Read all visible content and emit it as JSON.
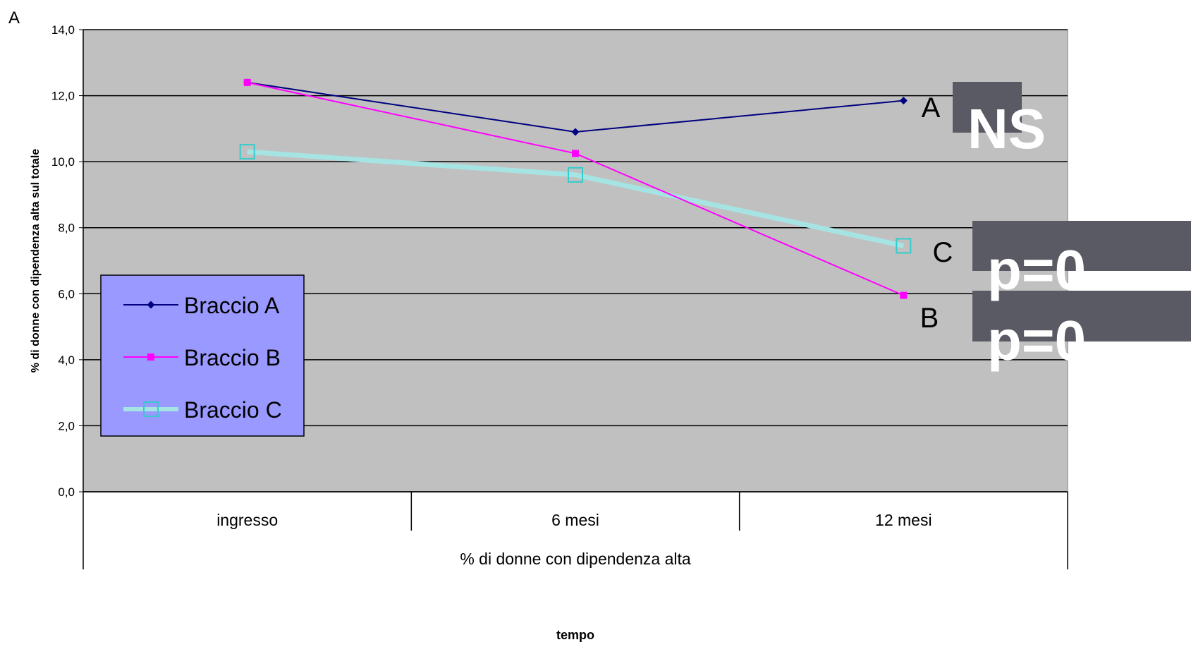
{
  "panel_label": "A",
  "chart_data": {
    "type": "line",
    "categories": [
      "ingresso",
      "6 mesi",
      "12 mesi"
    ],
    "xlabel": "%  di donne con dipendenza alta",
    "xlabel_secondary": "tempo",
    "ylabel": "% di donne con dipendenza alta sul totale",
    "ylim": [
      0,
      14
    ],
    "yticks": [
      "0,0",
      "2,0",
      "4,0",
      "6,0",
      "8,0",
      "10,0",
      "12,0",
      "14,0"
    ],
    "grid": true,
    "legend_placement": "lower-left",
    "series": [
      {
        "name": "Braccio A",
        "values": [
          12.4,
          10.9,
          11.85
        ],
        "color": "#000080",
        "marker": "diamond",
        "end_label": "A"
      },
      {
        "name": "Braccio B",
        "values": [
          12.4,
          10.25,
          5.95
        ],
        "color": "#ff00ff",
        "marker": "square",
        "end_label": "B"
      },
      {
        "name": "Braccio C",
        "values": [
          10.3,
          9.6,
          7.45
        ],
        "color": "#33cccc",
        "marker": "open-square",
        "end_label": "C"
      }
    ],
    "annotations": [
      {
        "text": "NS",
        "for": "A"
      },
      {
        "text": "p=0",
        "for": "C"
      },
      {
        "text": "p=0",
        "for": "B"
      }
    ],
    "colors": {
      "plot_bg": "#c0c0c0",
      "legend_bg": "#9999ff",
      "annotation_bg": "#5a5a64"
    }
  }
}
